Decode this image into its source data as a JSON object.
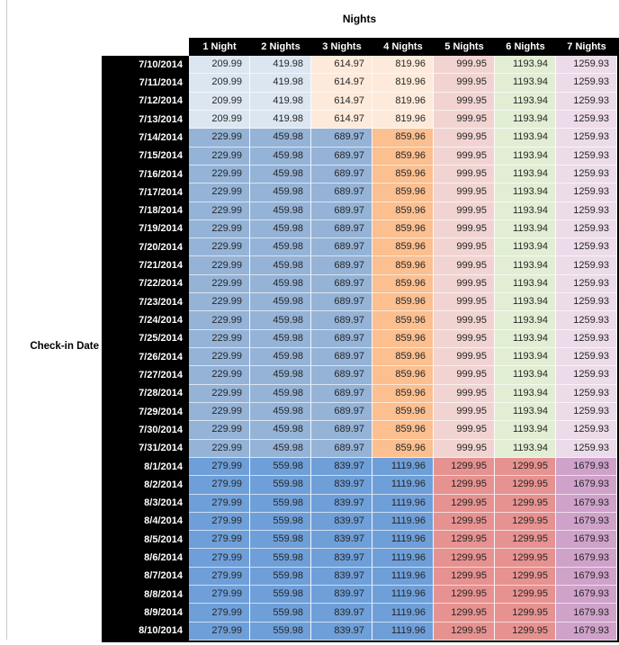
{
  "title": "Nights",
  "check_in_label": "Check-in Date",
  "columns": [
    "1 Night",
    "2 Nights",
    "3 Nights",
    "4 Nights",
    "5 Nights",
    "6 Nights",
    "7 Nights"
  ],
  "colors": {
    "header_bg": "#000000",
    "header_text": "#ffffff",
    "cell_text": "#262626",
    "band1_light_blue": "#dce6f1",
    "band1_tan": "#fdeada",
    "pale_rose": "#f1d4d2",
    "pale_green": "#e2eed4",
    "pale_pink": "#ecdbe9",
    "band2_medium_blue": "#95b3d7",
    "band2_orange": "#fbbf90",
    "band3_blue": "#6f9fd8",
    "band3_salmon": "#e69290",
    "band3_mauve": "#cfa2ca"
  },
  "bands": [
    {
      "dates": [
        "7/10/2014",
        "7/11/2014",
        "7/12/2014",
        "7/13/2014"
      ],
      "values": [
        "209.99",
        "419.98",
        "614.97",
        "819.96",
        "999.95",
        "1193.94",
        "1259.93"
      ],
      "cell_colors": [
        "#dce6f1",
        "#dce6f1",
        "#fdeada",
        "#fdeada",
        "#f1d4d2",
        "#e2eed4",
        "#ecdbe9"
      ]
    },
    {
      "dates": [
        "7/14/2014",
        "7/15/2014",
        "7/16/2014",
        "7/17/2014",
        "7/18/2014",
        "7/19/2014",
        "7/20/2014",
        "7/21/2014",
        "7/22/2014",
        "7/23/2014",
        "7/24/2014",
        "7/25/2014",
        "7/26/2014",
        "7/27/2014",
        "7/28/2014",
        "7/29/2014",
        "7/30/2014",
        "7/31/2014"
      ],
      "values": [
        "229.99",
        "459.98",
        "689.97",
        "859.96",
        "999.95",
        "1193.94",
        "1259.93"
      ],
      "cell_colors": [
        "#95b3d7",
        "#95b3d7",
        "#95b3d7",
        "#fbbf90",
        "#f1d4d2",
        "#e2eed4",
        "#ecdbe9"
      ]
    },
    {
      "dates": [
        "8/1/2014",
        "8/2/2014",
        "8/3/2014",
        "8/4/2014",
        "8/5/2014",
        "8/6/2014",
        "8/7/2014",
        "8/8/2014",
        "8/9/2014",
        "8/10/2014"
      ],
      "values": [
        "279.99",
        "559.98",
        "839.97",
        "1119.96",
        "1299.95",
        "1299.95",
        "1679.93"
      ],
      "cell_colors": [
        "#6f9fd8",
        "#6f9fd8",
        "#6f9fd8",
        "#6f9fd8",
        "#e69290",
        "#e69290",
        "#cfa2ca"
      ]
    }
  ]
}
